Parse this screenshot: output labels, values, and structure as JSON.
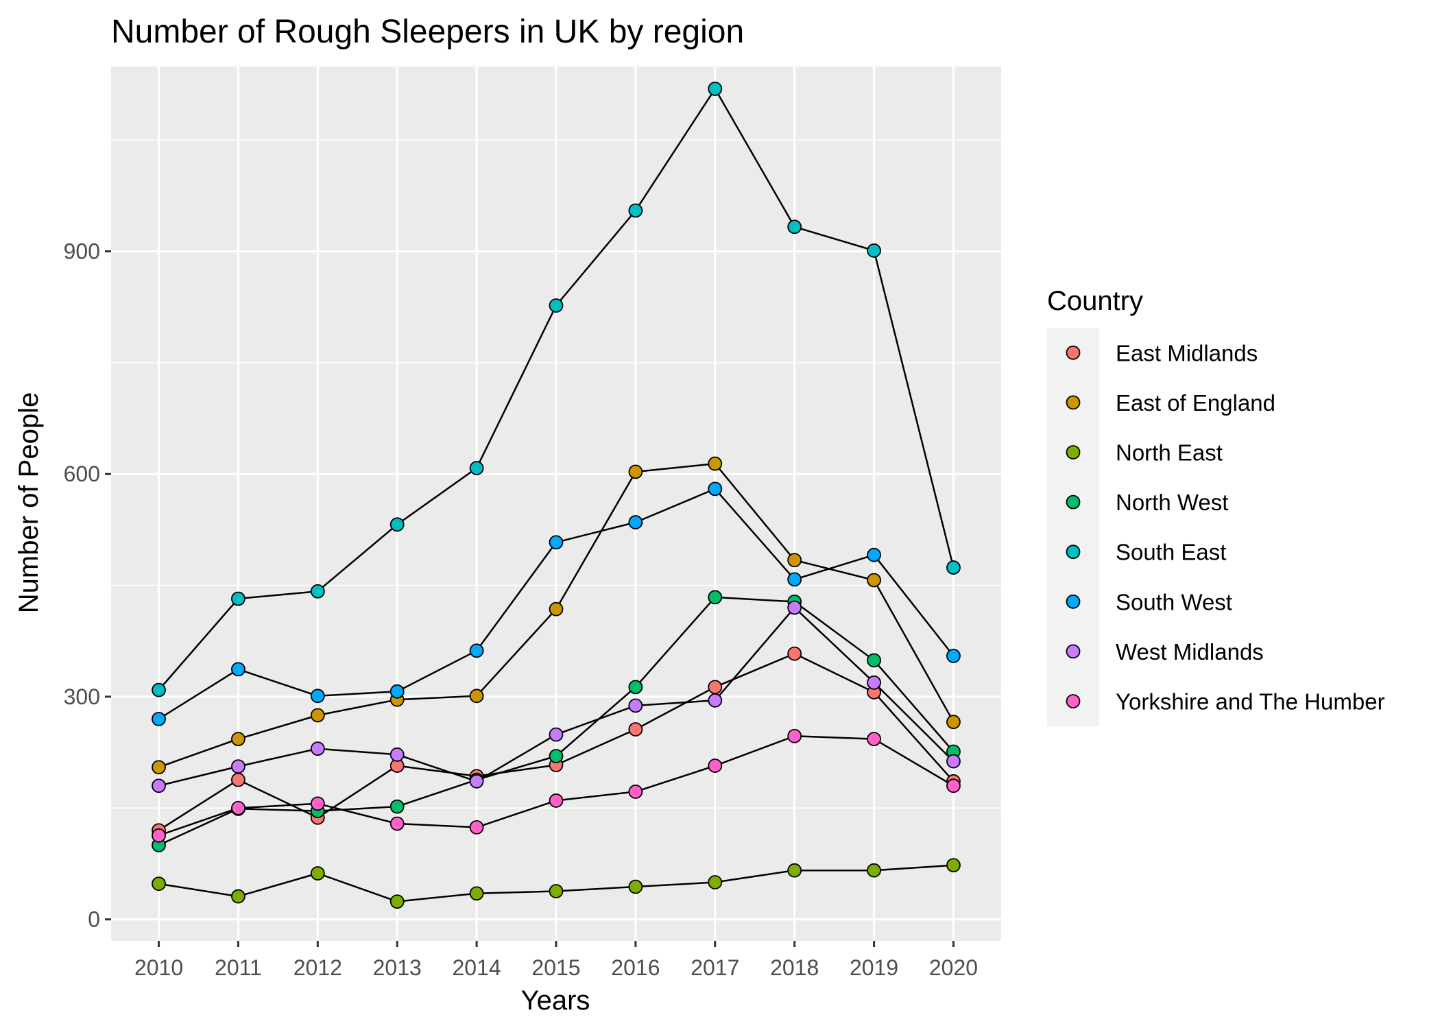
{
  "chart_data": {
    "type": "line",
    "title": "Number of Rough Sleepers in UK by region",
    "xlabel": "Years",
    "ylabel": "Number of People",
    "x": [
      2010,
      2011,
      2012,
      2013,
      2014,
      2015,
      2016,
      2017,
      2018,
      2019,
      2020
    ],
    "ylim": [
      -29,
      1149
    ],
    "yticks": [
      0,
      300,
      600,
      900
    ],
    "grid": true,
    "legend": {
      "title": "Country",
      "position": "right"
    },
    "series": [
      {
        "name": "East Midlands",
        "color": "#F8766D",
        "values": [
          120,
          188,
          137,
          207,
          193,
          208,
          256,
          313,
          358,
          306,
          186
        ]
      },
      {
        "name": "East of England",
        "color": "#CD9600",
        "values": [
          205,
          243,
          275,
          296,
          301,
          418,
          603,
          614,
          484,
          457,
          266
        ]
      },
      {
        "name": "North East",
        "color": "#7CAE00",
        "values": [
          48,
          31,
          62,
          24,
          35,
          38,
          44,
          50,
          66,
          66,
          73
        ]
      },
      {
        "name": "North West",
        "color": "#00BE67",
        "values": [
          100,
          149,
          146,
          152,
          188,
          220,
          313,
          434,
          428,
          349,
          226
        ]
      },
      {
        "name": "South East",
        "color": "#00BFC4",
        "values": [
          309,
          432,
          442,
          532,
          608,
          827,
          955,
          1119,
          933,
          901,
          474
        ]
      },
      {
        "name": "South West",
        "color": "#00A9FF",
        "values": [
          270,
          337,
          301,
          307,
          362,
          508,
          535,
          580,
          458,
          491,
          355
        ]
      },
      {
        "name": "West Midlands",
        "color": "#C77CFF",
        "values": [
          180,
          206,
          230,
          222,
          186,
          249,
          288,
          295,
          420,
          319,
          213
        ]
      },
      {
        "name": "Yorkshire and The Humber",
        "color": "#FF61CC",
        "values": [
          113,
          150,
          156,
          129,
          124,
          160,
          172,
          207,
          247,
          243,
          180
        ]
      }
    ]
  }
}
